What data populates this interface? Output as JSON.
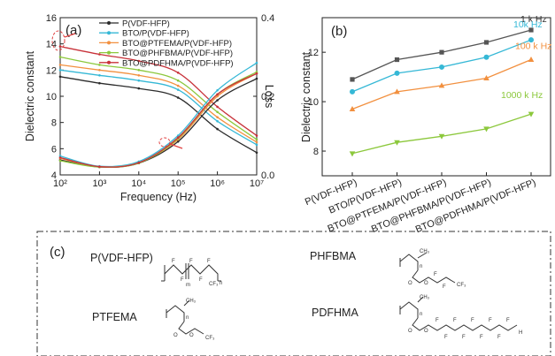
{
  "colors": {
    "P(VDF-HFP)": "#2b2b2b",
    "BTO/P(VDF-HFP)": "#35b8d6",
    "BTO@PTFEMA/P(VDF-HFP)": "#f2903f",
    "BTO@PHFBMA/P(VDF-HFP)": "#8cc83c",
    "BTO@PDFHMA/P(VDF-HFP)": "#c8323a",
    "frame_dash": "#333333",
    "loop_marker": "#e04040"
  },
  "chart_data": [
    {
      "panel": "(a)",
      "type": "line",
      "xlabel": "Frequency (Hz)",
      "ylabel": "Dielectric constant",
      "y2label": "Loss",
      "xscale": "log",
      "xlim": [
        100,
        10000000
      ],
      "ylim": [
        4,
        16
      ],
      "y2lim": [
        0,
        0.4
      ],
      "x_tick_labels": [
        "10²",
        "10³",
        "10⁴",
        "10⁵",
        "10⁶",
        "10⁷"
      ],
      "y_ticks": [
        4,
        6,
        8,
        10,
        12,
        14,
        16
      ],
      "y2_ticks": [
        0.0,
        0.2,
        0.4
      ],
      "legend_placement": "top-center",
      "legend": [
        "P(VDF-HFP)",
        "BTO/P(VDF-HFP)",
        "BTO@PTFEMA/P(VDF-HFP)",
        "BTO@PHFBMA/P(VDF-HFP)",
        "BTO@PDFHMA/P(VDF-HFP)"
      ],
      "x": [
        100,
        1000,
        10000,
        100000,
        1000000,
        10000000
      ],
      "series": [
        {
          "name": "P(VDF-HFP)",
          "axis": "dielectric",
          "values": [
            11.5,
            11.0,
            10.6,
            9.9,
            7.5,
            5.7
          ]
        },
        {
          "name": "BTO/P(VDF-HFP)",
          "axis": "dielectric",
          "values": [
            12.0,
            11.6,
            11.2,
            10.5,
            8.1,
            6.3
          ]
        },
        {
          "name": "BTO@PTFEMA/P(VDF-HFP)",
          "axis": "dielectric",
          "values": [
            12.4,
            12.0,
            11.6,
            10.8,
            8.4,
            6.5
          ]
        },
        {
          "name": "BTO@PHFBMA/P(VDF-HFP)",
          "axis": "dielectric",
          "values": [
            13.0,
            12.4,
            12.0,
            11.2,
            8.8,
            6.7
          ]
        },
        {
          "name": "BTO@PDFHMA/P(VDF-HFP)",
          "axis": "dielectric",
          "values": [
            13.8,
            13.2,
            12.7,
            11.8,
            9.2,
            7.0
          ]
        },
        {
          "name": "P(VDF-HFP)",
          "axis": "loss",
          "values": [
            0.038,
            0.02,
            0.03,
            0.085,
            0.19,
            0.245
          ]
        },
        {
          "name": "BTO/P(VDF-HFP)",
          "axis": "loss",
          "values": [
            0.048,
            0.022,
            0.034,
            0.1,
            0.215,
            0.285
          ]
        },
        {
          "name": "BTO@PTFEMA/P(VDF-HFP)",
          "axis": "loss",
          "values": [
            0.042,
            0.021,
            0.031,
            0.09,
            0.2,
            0.258
          ]
        },
        {
          "name": "BTO@PHFBMA/P(VDF-HFP)",
          "axis": "loss",
          "values": [
            0.036,
            0.02,
            0.03,
            0.093,
            0.205,
            0.262
          ]
        },
        {
          "name": "BTO@PDFHMA/P(VDF-HFP)",
          "axis": "loss",
          "values": [
            0.044,
            0.021,
            0.031,
            0.095,
            0.205,
            0.258
          ]
        }
      ]
    },
    {
      "panel": "(b)",
      "type": "line",
      "ylabel": "Dielectric constant",
      "ylim": [
        7,
        13.4
      ],
      "y_ticks": [
        8,
        10,
        12
      ],
      "categories": [
        "P(VDF-HFP)",
        "BTO/P(VDF-HFP)",
        "BTO@PTFEMA/P(VDF-HFP)",
        "BTO@PHFBMA/P(VDF-HFP)",
        "BTO@PDFHMA/P(VDF-HFP)"
      ],
      "series": [
        {
          "name": "1 k Hz",
          "color": "#555555",
          "marker": "square",
          "values": [
            10.9,
            11.7,
            12.0,
            12.4,
            12.9
          ]
        },
        {
          "name": "10k Hz",
          "color": "#35b8d6",
          "marker": "circle",
          "values": [
            10.4,
            11.15,
            11.4,
            11.8,
            12.5
          ]
        },
        {
          "name": "100  k Hz",
          "color": "#f2903f",
          "marker": "triangle-up",
          "values": [
            9.7,
            10.4,
            10.65,
            10.95,
            11.7
          ]
        },
        {
          "name": "1000  k Hz",
          "color": "#8cc83c",
          "marker": "triangle-down",
          "values": [
            7.9,
            8.35,
            8.6,
            8.9,
            9.5
          ]
        }
      ]
    }
  ],
  "panel_c": {
    "label": "(c)",
    "names": {
      "pvdf": "P(VDF-HFP)",
      "phfbma": "PHFBMA",
      "ptfema": "PTFEMA",
      "pdfhma": "PDFHMA"
    },
    "atoms": {
      "F": "F",
      "H": "H",
      "O": "O",
      "CH3": "CH₃",
      "CF3": "CF₃",
      "m": "m",
      "n": "n"
    }
  }
}
